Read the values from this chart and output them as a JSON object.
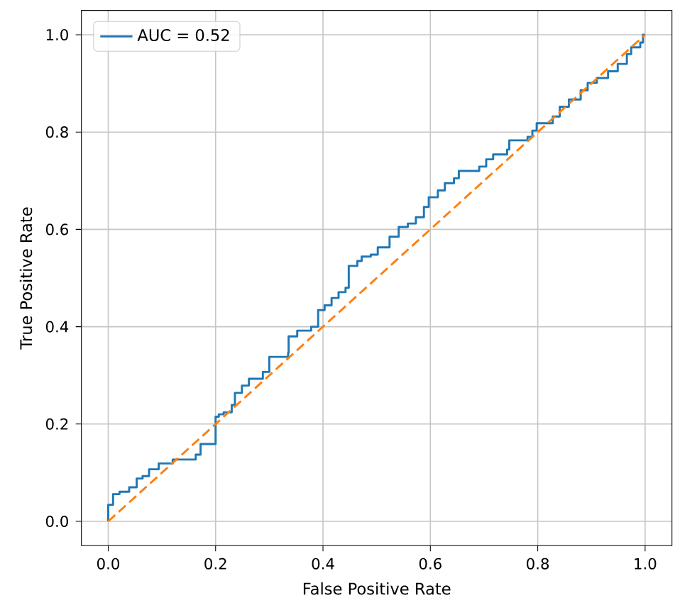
{
  "chart_data": {
    "type": "line",
    "xlabel": "False Positive Rate",
    "ylabel": "True Positive Rate",
    "xlim": [
      -0.05,
      1.05
    ],
    "ylim": [
      -0.05,
      1.05
    ],
    "xticks": [
      {
        "value": 0,
        "label": "0.0"
      },
      {
        "value": 0.2,
        "label": "0.2"
      },
      {
        "value": 0.4,
        "label": "0.4"
      },
      {
        "value": 0.6,
        "label": "0.6"
      },
      {
        "value": 0.8,
        "label": "0.8"
      },
      {
        "value": 1,
        "label": "1.0"
      }
    ],
    "yticks": [
      {
        "value": 0,
        "label": "0.0"
      },
      {
        "value": 0.2,
        "label": "0.2"
      },
      {
        "value": 0.4,
        "label": "0.4"
      },
      {
        "value": 0.6,
        "label": "0.6"
      },
      {
        "value": 0.8,
        "label": "0.8"
      },
      {
        "value": 1,
        "label": "1.0"
      }
    ],
    "grid": true,
    "legend": "top left",
    "series": [
      {
        "name": "AUC = 0.52",
        "type": "step",
        "color": "#1f77b4",
        "line_style": "solid",
        "x": [
          0,
          0,
          0.009,
          0.021,
          0.039,
          0.053,
          0.064,
          0.076,
          0.094,
          0.12,
          0.163,
          0.172,
          0.2,
          0.206,
          0.215,
          0.23,
          0.236,
          0.249,
          0.262,
          0.288,
          0.3,
          0.335,
          0.336,
          0.352,
          0.378,
          0.391,
          0.403,
          0.416,
          0.429,
          0.442,
          0.448,
          0.464,
          0.472,
          0.489,
          0.502,
          0.524,
          0.541,
          0.558,
          0.573,
          0.588,
          0.597,
          0.614,
          0.627,
          0.644,
          0.653,
          0.691,
          0.704,
          0.717,
          0.743,
          0.747,
          0.781,
          0.79,
          0.798,
          0.828,
          0.841,
          0.858,
          0.88,
          0.893,
          0.91,
          0.931,
          0.949,
          0.966,
          0.974,
          0.991,
          0.996,
          1
        ],
        "values": [
          0,
          0.034,
          0.056,
          0.061,
          0.07,
          0.088,
          0.093,
          0.107,
          0.119,
          0.127,
          0.137,
          0.159,
          0.215,
          0.22,
          0.224,
          0.239,
          0.264,
          0.279,
          0.293,
          0.307,
          0.338,
          0.346,
          0.38,
          0.392,
          0.4,
          0.434,
          0.444,
          0.459,
          0.471,
          0.48,
          0.525,
          0.535,
          0.544,
          0.548,
          0.563,
          0.585,
          0.605,
          0.612,
          0.625,
          0.646,
          0.666,
          0.68,
          0.695,
          0.705,
          0.72,
          0.729,
          0.744,
          0.754,
          0.764,
          0.783,
          0.79,
          0.803,
          0.818,
          0.832,
          0.852,
          0.867,
          0.886,
          0.901,
          0.911,
          0.925,
          0.94,
          0.96,
          0.974,
          0.984,
          1,
          1
        ]
      },
      {
        "color": "#ff7f0e",
        "line_style": "dashed",
        "x": [
          0,
          1
        ],
        "values": [
          0,
          1
        ]
      }
    ]
  }
}
